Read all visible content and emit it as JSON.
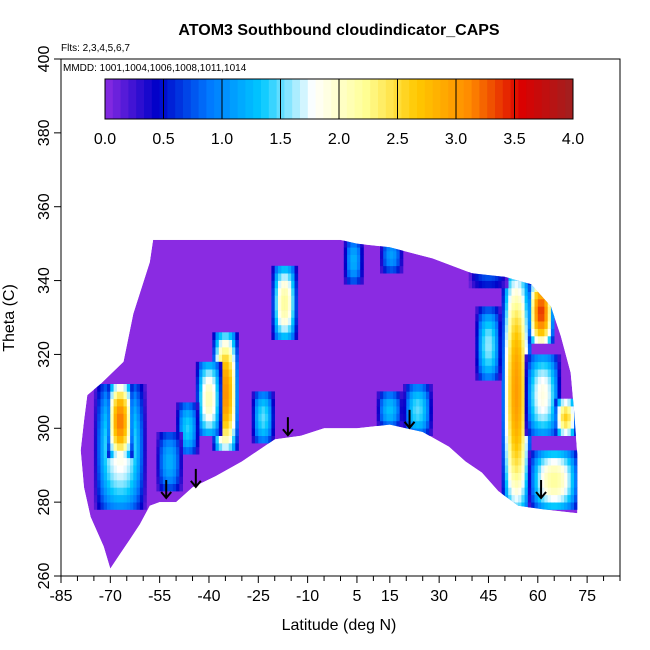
{
  "chart_data": {
    "type": "heatmap",
    "title": "ATOM3 Southbound cloudindicator_CAPS",
    "subtitle": "Flts: 2,3,4,5,6,7",
    "date_note": "MMDD: 1001,1004,1006,1008,1011,1014",
    "xlabel": "Latitude (deg N)",
    "ylabel": "Theta (C)",
    "xlim": [
      -85,
      85
    ],
    "ylim": [
      260,
      400
    ],
    "x_ticks": [
      -85,
      -70,
      -55,
      -40,
      -25,
      -10,
      5,
      15,
      30,
      45,
      60,
      75
    ],
    "y_ticks": [
      260,
      280,
      300,
      320,
      340,
      360,
      380,
      400
    ],
    "colorbar": {
      "range": [
        0,
        4
      ],
      "ticks": [
        "0.0",
        "0.5",
        "1.0",
        "1.5",
        "2.0",
        "2.5",
        "3.0",
        "3.5",
        "4.0"
      ],
      "stops": [
        "#8a2be2",
        "#0000c8",
        "#0078ff",
        "#00c8ff",
        "#ffffff",
        "#ffff96",
        "#ffc800",
        "#ff8c00",
        "#dc0000",
        "#a02020"
      ]
    },
    "background_value": 0,
    "domain": [
      [
        -72,
        268
      ],
      [
        -76,
        276
      ],
      [
        -78,
        284
      ],
      [
        -79,
        294
      ],
      [
        -78,
        302
      ],
      [
        -77,
        309
      ],
      [
        -73,
        312
      ],
      [
        -66,
        318
      ],
      [
        -63,
        331
      ],
      [
        -58,
        345
      ],
      [
        -57,
        351
      ],
      [
        -53,
        351
      ],
      [
        -35,
        351
      ],
      [
        -20,
        351
      ],
      [
        -10,
        351
      ],
      [
        0,
        351
      ],
      [
        5,
        350
      ],
      [
        15,
        349
      ],
      [
        28,
        346
      ],
      [
        40,
        342
      ],
      [
        50,
        341
      ],
      [
        58,
        339
      ],
      [
        64,
        333
      ],
      [
        67,
        325
      ],
      [
        70,
        315
      ],
      [
        71,
        305
      ],
      [
        72,
        293
      ],
      [
        72,
        277
      ],
      [
        62,
        278
      ],
      [
        54,
        279
      ],
      [
        48,
        283
      ],
      [
        43,
        288
      ],
      [
        38,
        291
      ],
      [
        33,
        295
      ],
      [
        25,
        299
      ],
      [
        15,
        301
      ],
      [
        5,
        300
      ],
      [
        -5,
        300
      ],
      [
        -12,
        298
      ],
      [
        -20,
        297
      ],
      [
        -30,
        291
      ],
      [
        -38,
        287
      ],
      [
        -45,
        284
      ],
      [
        -50,
        280
      ],
      [
        -55,
        280
      ],
      [
        -58,
        279
      ],
      [
        -61,
        274
      ],
      [
        -64,
        270
      ],
      [
        -67,
        266
      ],
      [
        -70,
        262
      ],
      [
        -72,
        268
      ]
    ],
    "features": [
      {
        "x": [
          -38,
          -32
        ],
        "y": [
          296,
          323
        ],
        "peak": 3.1
      },
      {
        "x": [
          -43,
          -37
        ],
        "y": [
          300,
          316
        ],
        "peak": 2.1
      },
      {
        "x": [
          -49,
          -44
        ],
        "y": [
          295,
          305
        ],
        "peak": 1.4
      },
      {
        "x": [
          -74,
          -60
        ],
        "y": [
          280,
          310
        ],
        "peak": 1.9
      },
      {
        "x": [
          -70,
          -64
        ],
        "y": [
          294,
          310
        ],
        "peak": 3.2
      },
      {
        "x": [
          -55,
          -49
        ],
        "y": [
          285,
          297
        ],
        "peak": 1.2
      },
      {
        "x": [
          -26,
          -21
        ],
        "y": [
          298,
          308
        ],
        "peak": 1.5
      },
      {
        "x": [
          -20,
          -14
        ],
        "y": [
          326,
          342
        ],
        "peak": 2.2
      },
      {
        "x": [
          2,
          6
        ],
        "y": [
          341,
          350
        ],
        "peak": 1.2
      },
      {
        "x": [
          13,
          18
        ],
        "y": [
          344,
          350
        ],
        "peak": 1.1
      },
      {
        "x": [
          20,
          27
        ],
        "y": [
          300,
          310
        ],
        "peak": 1.5
      },
      {
        "x": [
          12,
          18
        ],
        "y": [
          302,
          308
        ],
        "peak": 1.3
      },
      {
        "x": [
          50,
          57
        ],
        "y": [
          280,
          340
        ],
        "peak": 3.0
      },
      {
        "x": [
          58,
          64
        ],
        "y": [
          325,
          338
        ],
        "peak": 3.4
      },
      {
        "x": [
          42,
          48
        ],
        "y": [
          315,
          330
        ],
        "peak": 1.6
      },
      {
        "x": [
          57,
          66
        ],
        "y": [
          300,
          318
        ],
        "peak": 1.9
      },
      {
        "x": [
          58,
          72
        ],
        "y": [
          280,
          292
        ],
        "peak": 2.2
      },
      {
        "x": [
          66,
          71
        ],
        "y": [
          300,
          306
        ],
        "peak": 2.6
      },
      {
        "x": [
          40,
          50
        ],
        "y": [
          340,
          346
        ],
        "peak": 0.8
      }
    ],
    "flight_markers": [
      {
        "x": -53,
        "y": 286
      },
      {
        "x": -44,
        "y": 289
      },
      {
        "x": -16,
        "y": 303
      },
      {
        "x": 21,
        "y": 305
      },
      {
        "x": 61,
        "y": 286
      }
    ],
    "grid": false,
    "colorbar_placement": "top"
  }
}
